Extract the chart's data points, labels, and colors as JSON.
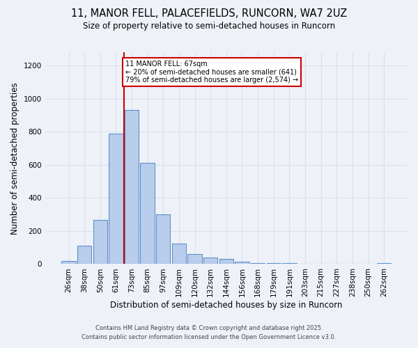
{
  "title_line1": "11, MANOR FELL, PALACEFIELDS, RUNCORN, WA7 2UZ",
  "title_line2": "Size of property relative to semi-detached houses in Runcorn",
  "xlabel": "Distribution of semi-detached houses by size in Runcorn",
  "ylabel": "Number of semi-detached properties",
  "categories": [
    "26sqm",
    "38sqm",
    "50sqm",
    "61sqm",
    "73sqm",
    "85sqm",
    "97sqm",
    "109sqm",
    "120sqm",
    "132sqm",
    "144sqm",
    "156sqm",
    "168sqm",
    "179sqm",
    "191sqm",
    "203sqm",
    "215sqm",
    "227sqm",
    "238sqm",
    "250sqm",
    "262sqm"
  ],
  "values": [
    20,
    110,
    265,
    790,
    930,
    610,
    300,
    125,
    60,
    38,
    30,
    15,
    8,
    5,
    5,
    4,
    3,
    2,
    1,
    1,
    8
  ],
  "bar_color": "#b8ccec",
  "bar_edge_color": "#6090c8",
  "vline_x": 3.5,
  "vline_color": "#cc0000",
  "annotation_title": "11 MANOR FELL: 67sqm",
  "annotation_line2": "← 20% of semi-detached houses are smaller (641)",
  "annotation_line3": "79% of semi-detached houses are larger (2,574) →",
  "annotation_box_color": "#ffffff",
  "annotation_edge_color": "#cc0000",
  "ylim": [
    0,
    1280
  ],
  "yticks": [
    0,
    200,
    400,
    600,
    800,
    1000,
    1200
  ],
  "footer_line1": "Contains HM Land Registry data © Crown copyright and database right 2025.",
  "footer_line2": "Contains public sector information licensed under the Open Government Licence v3.0.",
  "background_color": "#eef2f8",
  "grid_color": "#d8e0ec"
}
